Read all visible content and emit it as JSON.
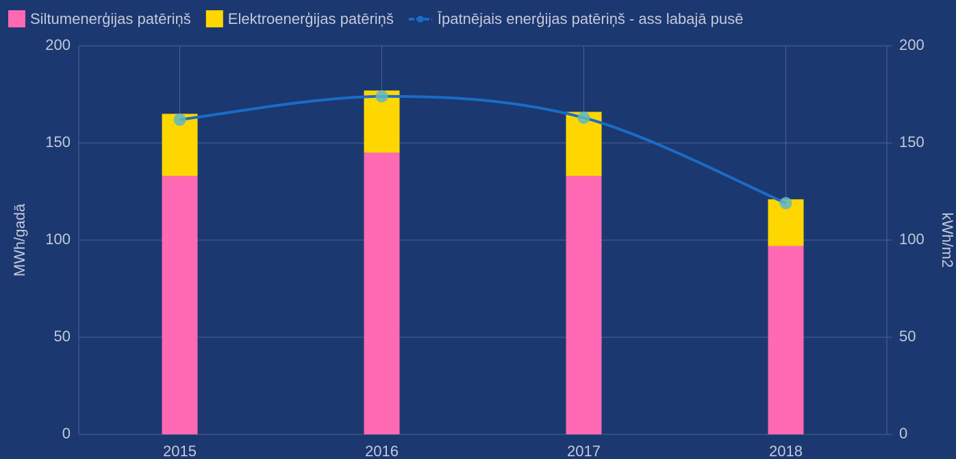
{
  "chart_data": {
    "type": "bar",
    "stacked": true,
    "legend": "top",
    "grid": true,
    "categories": [
      "2015",
      "2016",
      "2017",
      "2018"
    ],
    "series": [
      {
        "name": "Siltumenerģijas patēriņš",
        "color": "#ff69b4",
        "values": [
          133,
          145,
          133,
          97
        ]
      },
      {
        "name": "Elektroenerģijas patēriņš",
        "color": "#ffd700",
        "values": [
          32,
          32,
          33,
          24
        ]
      },
      {
        "name": "Īpatnējais enerģijas patēriņš - ass labajā pusē",
        "type": "line",
        "axis": "y2",
        "color": "#1a6cc8",
        "marker_color": "#5fb7c4",
        "values": [
          162,
          174,
          163,
          119
        ]
      }
    ],
    "ylabel": "MWh/gadā",
    "y2label": "kWh/m2",
    "ylim": [
      0,
      200
    ],
    "yticks": [
      0,
      50,
      100,
      150,
      200
    ],
    "y2lim": [
      0,
      200
    ],
    "y2ticks": [
      0,
      50,
      100,
      150,
      200
    ]
  }
}
